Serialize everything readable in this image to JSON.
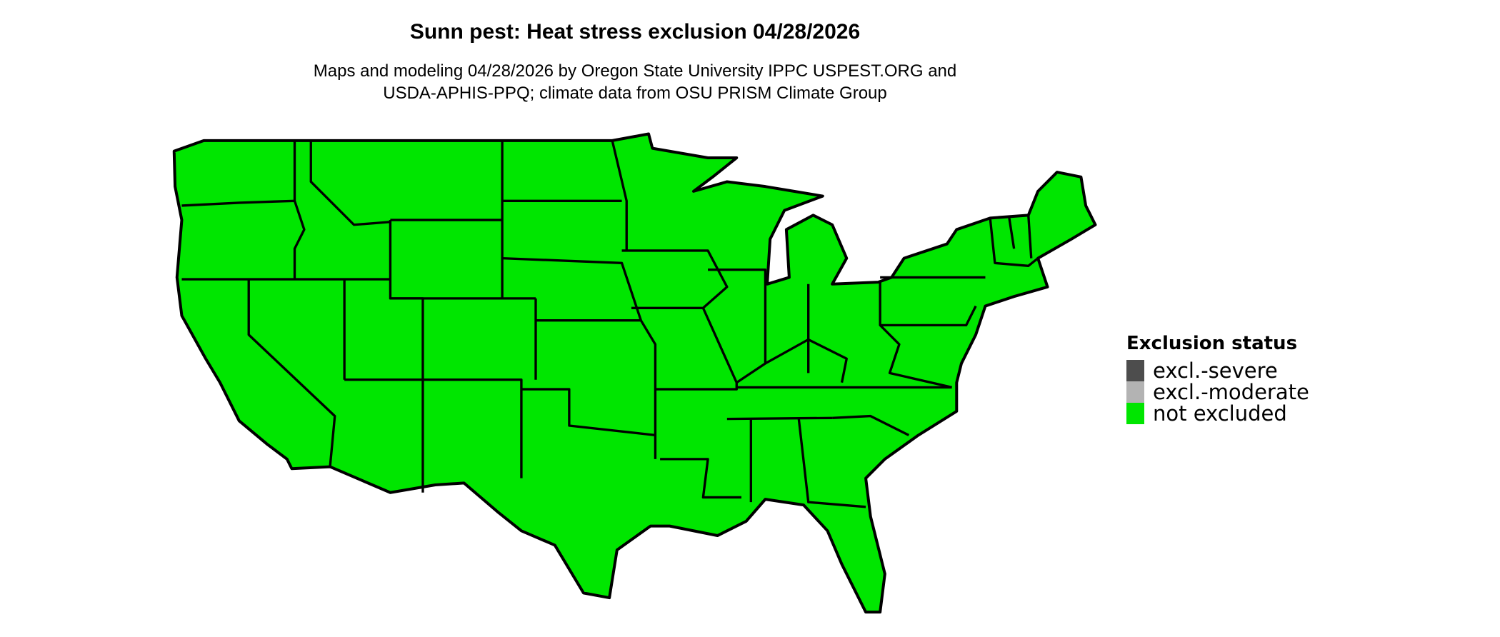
{
  "title": "Sunn pest: Heat stress exclusion 04/28/2026",
  "subtitle_lines": [
    "Maps and modeling 04/28/2026 by Oregon State University IPPC USPEST.ORG and",
    "USDA-APHIS-PPQ; climate data from OSU PRISM Climate Group"
  ],
  "map": {
    "region": "contiguous United States",
    "fill_status": "not excluded",
    "fill_color": "#00e600",
    "border_color": "#000000"
  },
  "legend": {
    "title": "Exclusion status",
    "items": [
      {
        "label": "excl.-severe",
        "color": "#4d4d4d"
      },
      {
        "label": "excl.-moderate",
        "color": "#b3b3b3"
      },
      {
        "label": "not excluded",
        "color": "#00e600"
      }
    ]
  }
}
